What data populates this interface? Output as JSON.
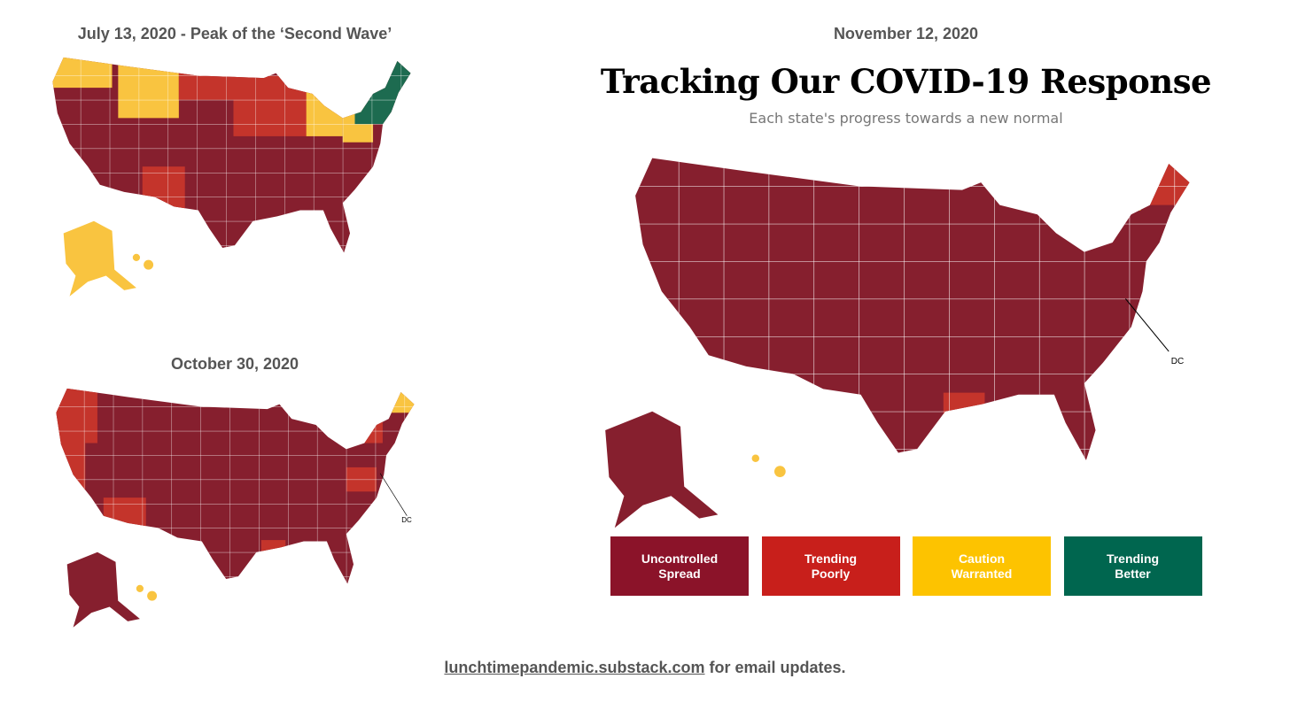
{
  "panels": [
    {
      "date": "July 13, 2020 - Peak of the ‘Second Wave’"
    },
    {
      "date": "October 30, 2020",
      "dc_label": "DC"
    }
  ],
  "main": {
    "date": "November 12, 2020",
    "title": "Tracking Our COVID-19 Response",
    "subtitle": "Each state's progress towards a new normal",
    "dc_label": "DC"
  },
  "legend": [
    {
      "lines": [
        "Uncontrolled",
        "Spread"
      ],
      "color": "#8b1329"
    },
    {
      "lines": [
        "Trending",
        "Poorly"
      ],
      "color": "#c81f1b"
    },
    {
      "lines": [
        "Caution",
        "Warranted"
      ],
      "color": "#fdc300"
    },
    {
      "lines": [
        "Trending",
        "Better"
      ],
      "color": "#00664f"
    }
  ],
  "footer": {
    "link": "lunchtimepandemic.substack.com",
    "text": " for email updates."
  }
}
